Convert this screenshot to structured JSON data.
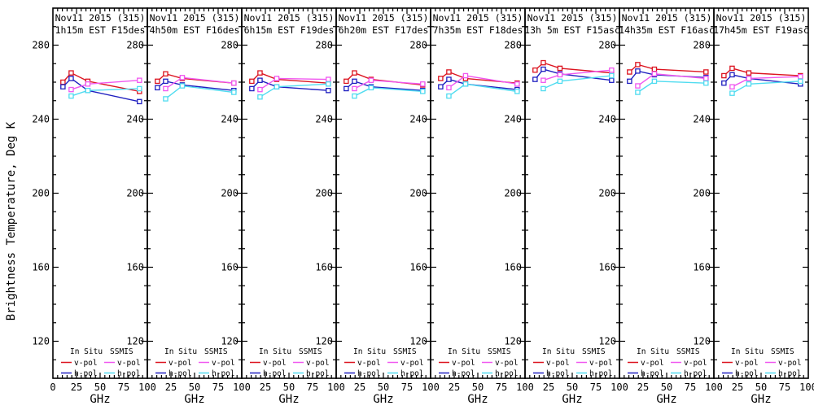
{
  "chart_data": {
    "type": "line",
    "ylabel": "Brightness Temperature, Deg K",
    "xlabel": "GHz",
    "xlim": [
      0,
      100
    ],
    "ylim": [
      100,
      300
    ],
    "x_major_ticks": [
      0,
      25,
      50,
      75,
      100
    ],
    "x_minor_step": 5,
    "y_major_ticks": [
      280,
      240,
      200,
      160,
      120
    ],
    "y_minor_step": 10,
    "grid": false,
    "legend": {
      "col1_header": "In Situ",
      "col2_header": "SSMIS",
      "row1_label": "v-pol",
      "row2_label": "h-pol",
      "position": "bottom-inside-each-panel"
    },
    "colors": {
      "insitu_v": "#dc1420",
      "insitu_h": "#2020c0",
      "ssmis_v": "#f058f0",
      "ssmis_h": "#50dcf0",
      "axis": "#000000",
      "background": "#ffffff"
    },
    "insitu_freqs_ghz": [
      10.65,
      19.35,
      37.0,
      91.655
    ],
    "ssmis_freqs_ghz": [
      19.35,
      37.0,
      91.655
    ],
    "panels": [
      {
        "title_line1": "Nov11 2015 (315)",
        "title_line2": "1h15m EST F15des",
        "series": {
          "insitu_v": [
            260.0,
            265.0,
            260.5,
            255.0
          ],
          "insitu_h": [
            257.5,
            262.0,
            255.5,
            249.5
          ],
          "ssmis_v": [
            256.0,
            259.0,
            261.0
          ],
          "ssmis_h": [
            252.5,
            255.5,
            256.5
          ]
        }
      },
      {
        "title_line1": "Nov11 2015 (315)",
        "title_line2": "4h50m EST F16des",
        "series": {
          "insitu_v": [
            260.5,
            264.5,
            262.0,
            259.5
          ],
          "insitu_h": [
            257.0,
            260.5,
            258.5,
            255.5
          ],
          "ssmis_v": [
            256.5,
            262.5,
            259.5
          ],
          "ssmis_h": [
            251.0,
            258.0,
            254.5
          ]
        }
      },
      {
        "title_line1": "Nov11 2015 (315)",
        "title_line2": "6h15m EST F19des",
        "series": {
          "insitu_v": [
            260.5,
            265.0,
            261.5,
            259.5
          ],
          "insitu_h": [
            256.5,
            261.0,
            257.5,
            255.5
          ],
          "ssmis_v": [
            256.0,
            262.0,
            261.5
          ],
          "ssmis_h": [
            252.0,
            257.5,
            259.0
          ]
        }
      },
      {
        "title_line1": "Nov11 2015 (315)",
        "title_line2": "6h20m EST F17des",
        "series": {
          "insitu_v": [
            260.5,
            265.0,
            261.5,
            258.5
          ],
          "insitu_h": [
            256.5,
            260.5,
            257.5,
            255.5
          ],
          "ssmis_v": [
            256.5,
            261.0,
            259.0
          ],
          "ssmis_h": [
            252.5,
            257.0,
            255.0
          ]
        }
      },
      {
        "title_line1": "Nov11 2015 (315)",
        "title_line2": "7h35m EST F18des",
        "series": {
          "insitu_v": [
            262.0,
            265.5,
            262.0,
            259.5
          ],
          "insitu_h": [
            257.5,
            261.5,
            259.0,
            256.0
          ],
          "ssmis_v": [
            257.0,
            263.5,
            259.0
          ],
          "ssmis_h": [
            252.5,
            259.0,
            255.0
          ]
        }
      },
      {
        "title_line1": "Nov11 2015 (315)",
        "title_line2": "13h 5m EST F15asc",
        "series": {
          "insitu_v": [
            266.5,
            270.5,
            267.5,
            265.0
          ],
          "insitu_h": [
            261.5,
            267.0,
            264.5,
            261.0
          ],
          "ssmis_v": [
            261.0,
            264.0,
            266.5
          ],
          "ssmis_h": [
            256.5,
            260.5,
            263.5
          ]
        }
      },
      {
        "title_line1": "Nov11 2015 (315)",
        "title_line2": "14h35m EST F16asc",
        "series": {
          "insitu_v": [
            265.5,
            269.5,
            267.0,
            265.5
          ],
          "insitu_h": [
            260.5,
            266.0,
            264.0,
            262.5
          ],
          "ssmis_v": [
            258.0,
            264.5,
            262.0
          ],
          "ssmis_h": [
            254.5,
            260.5,
            259.5
          ]
        }
      },
      {
        "title_line1": "Nov11 2015 (315)",
        "title_line2": "17h45m EST F19asc",
        "series": {
          "insitu_v": [
            263.5,
            267.5,
            265.0,
            263.5
          ],
          "insitu_h": [
            259.5,
            264.0,
            262.0,
            259.0
          ],
          "ssmis_v": [
            257.5,
            262.0,
            263.0
          ],
          "ssmis_h": [
            254.0,
            259.0,
            260.5
          ]
        }
      }
    ]
  }
}
